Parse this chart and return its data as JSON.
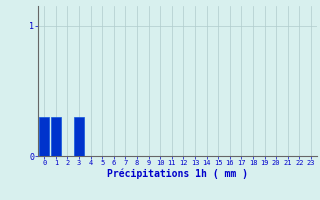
{
  "title": "",
  "xlabel": "Précipitations 1h ( mm )",
  "num_bars": 24,
  "values": [
    0.3,
    0.3,
    0.0,
    0.3,
    0.0,
    0.0,
    0.0,
    0.0,
    0.0,
    0.0,
    0.0,
    0.0,
    0.0,
    0.0,
    0.0,
    0.0,
    0.0,
    0.0,
    0.0,
    0.0,
    0.0,
    0.0,
    0.0,
    0.0
  ],
  "bar_color": "#0033cc",
  "bar_edge_color": "#1155dd",
  "background_color": "#d8f0ee",
  "grid_color": "#b0cccc",
  "axis_color": "#666666",
  "tick_label_color": "#0000cc",
  "xlabel_color": "#0000cc",
  "ylabel_color": "#0000cc",
  "ytick_labels": [
    "0",
    "1"
  ],
  "ytick_values": [
    0,
    1
  ],
  "ylim": [
    0,
    1.15
  ],
  "xlim": [
    -0.5,
    23.5
  ],
  "tick_fontsize": 5.0,
  "xlabel_fontsize": 7.0,
  "figsize": [
    3.2,
    2.0
  ],
  "dpi": 100
}
